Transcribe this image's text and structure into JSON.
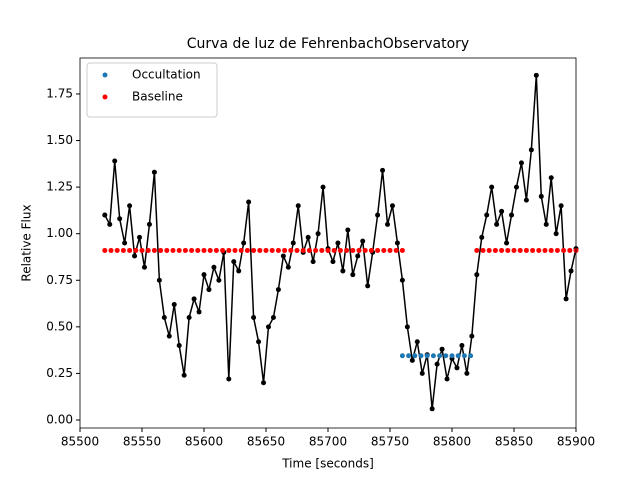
{
  "chart_data": {
    "type": "line",
    "title": "Curva de luz de FehrenbachObservatory",
    "x_label": "Time [seconds]",
    "y_label": "Relative Flux",
    "xlim": [
      85500,
      85900
    ],
    "ylim": [
      -0.043,
      1.943
    ],
    "xticks": [
      85500,
      85550,
      85600,
      85650,
      85700,
      85750,
      85800,
      85850,
      85900
    ],
    "yticks": [
      {
        "value": 0,
        "label": "0.00"
      },
      {
        "value": 0.25,
        "label": "0.25"
      },
      {
        "value": 0.5,
        "label": "0.50"
      },
      {
        "value": 0.75,
        "label": "0.75"
      },
      {
        "value": 1,
        "label": "1.00"
      },
      {
        "value": 1.25,
        "label": "1.25"
      },
      {
        "value": 1.5,
        "label": "1.50"
      },
      {
        "value": 1.75,
        "label": "1.75"
      }
    ],
    "legend_position": "upper left",
    "series": [
      {
        "color": "#000000",
        "line": true,
        "x": [
          85520,
          85524,
          85528,
          85532,
          85536,
          85540,
          85544,
          85548,
          85552,
          85556,
          85560,
          85564,
          85568,
          85572,
          85576,
          85580,
          85584,
          85588,
          85592,
          85596,
          85600,
          85604,
          85608,
          85612,
          85616,
          85620,
          85624,
          85628,
          85632,
          85636,
          85640,
          85644,
          85648,
          85652,
          85656,
          85660,
          85664,
          85668,
          85672,
          85676,
          85680,
          85684,
          85688,
          85692,
          85696,
          85700,
          85704,
          85708,
          85712,
          85716,
          85720,
          85724,
          85728,
          85732,
          85736,
          85740,
          85744,
          85748,
          85752,
          85756,
          85760,
          85764,
          85768,
          85772,
          85776,
          85780,
          85784,
          85788,
          85792,
          85796,
          85800,
          85804,
          85808,
          85812,
          85816,
          85820,
          85824,
          85828,
          85832,
          85836,
          85840,
          85844,
          85848,
          85852,
          85856,
          85860,
          85864,
          85868,
          85872,
          85876,
          85880,
          85884,
          85888,
          85892,
          85896,
          85900
        ],
        "values": [
          1.1,
          1.05,
          1.39,
          1.08,
          0.95,
          1.15,
          0.88,
          0.98,
          0.82,
          1.05,
          1.33,
          0.75,
          0.55,
          0.45,
          0.62,
          0.4,
          0.24,
          0.55,
          0.65,
          0.58,
          0.78,
          0.7,
          0.82,
          0.75,
          0.9,
          0.22,
          0.85,
          0.8,
          0.95,
          1.17,
          0.55,
          0.42,
          0.2,
          0.5,
          0.55,
          0.7,
          0.88,
          0.82,
          0.95,
          1.15,
          0.9,
          0.98,
          0.85,
          1.0,
          1.25,
          0.92,
          0.85,
          0.95,
          0.8,
          1.02,
          0.78,
          0.88,
          0.96,
          0.72,
          0.9,
          1.1,
          1.34,
          1.05,
          1.15,
          0.95,
          0.75,
          0.5,
          0.32,
          0.42,
          0.25,
          0.35,
          0.06,
          0.3,
          0.38,
          0.22,
          0.33,
          0.28,
          0.4,
          0.25,
          0.45,
          0.78,
          0.98,
          1.1,
          1.25,
          1.05,
          1.12,
          0.95,
          1.1,
          1.25,
          1.38,
          1.18,
          1.45,
          1.85,
          1.2,
          1.05,
          1.3,
          1.0,
          1.15,
          0.65,
          0.8,
          0.92
        ]
      },
      {
        "name": "Occultation",
        "color": "#1f77b4",
        "line": false,
        "x": [
          85760,
          85765,
          85770,
          85775,
          85780,
          85785,
          85790,
          85795,
          85800,
          85805,
          85810,
          85815
        ],
        "values": [
          0.345,
          0.345,
          0.345,
          0.345,
          0.345,
          0.345,
          0.345,
          0.345,
          0.345,
          0.345,
          0.345,
          0.345
        ]
      },
      {
        "name": "Baseline",
        "color": "#ff0000",
        "line": false,
        "x": [
          85520,
          85525,
          85530,
          85535,
          85540,
          85545,
          85550,
          85555,
          85560,
          85565,
          85570,
          85575,
          85580,
          85585,
          85590,
          85595,
          85600,
          85605,
          85610,
          85615,
          85620,
          85625,
          85630,
          85635,
          85640,
          85645,
          85650,
          85655,
          85660,
          85665,
          85670,
          85675,
          85680,
          85685,
          85690,
          85695,
          85700,
          85705,
          85710,
          85715,
          85720,
          85725,
          85730,
          85735,
          85740,
          85745,
          85750,
          85755,
          85760,
          85820,
          85825,
          85830,
          85835,
          85840,
          85845,
          85850,
          85855,
          85860,
          85865,
          85870,
          85875,
          85880,
          85885,
          85890,
          85895,
          85900
        ],
        "values": [
          0.91,
          0.91,
          0.91,
          0.91,
          0.91,
          0.91,
          0.91,
          0.91,
          0.91,
          0.91,
          0.91,
          0.91,
          0.91,
          0.91,
          0.91,
          0.91,
          0.91,
          0.91,
          0.91,
          0.91,
          0.91,
          0.91,
          0.91,
          0.91,
          0.91,
          0.91,
          0.91,
          0.91,
          0.91,
          0.91,
          0.91,
          0.91,
          0.91,
          0.91,
          0.91,
          0.91,
          0.91,
          0.91,
          0.91,
          0.91,
          0.91,
          0.91,
          0.91,
          0.91,
          0.91,
          0.91,
          0.91,
          0.91,
          0.91,
          0.91,
          0.91,
          0.91,
          0.91,
          0.91,
          0.91,
          0.91,
          0.91,
          0.91,
          0.91,
          0.91,
          0.91,
          0.91,
          0.91,
          0.91,
          0.91,
          0.91
        ]
      }
    ]
  }
}
